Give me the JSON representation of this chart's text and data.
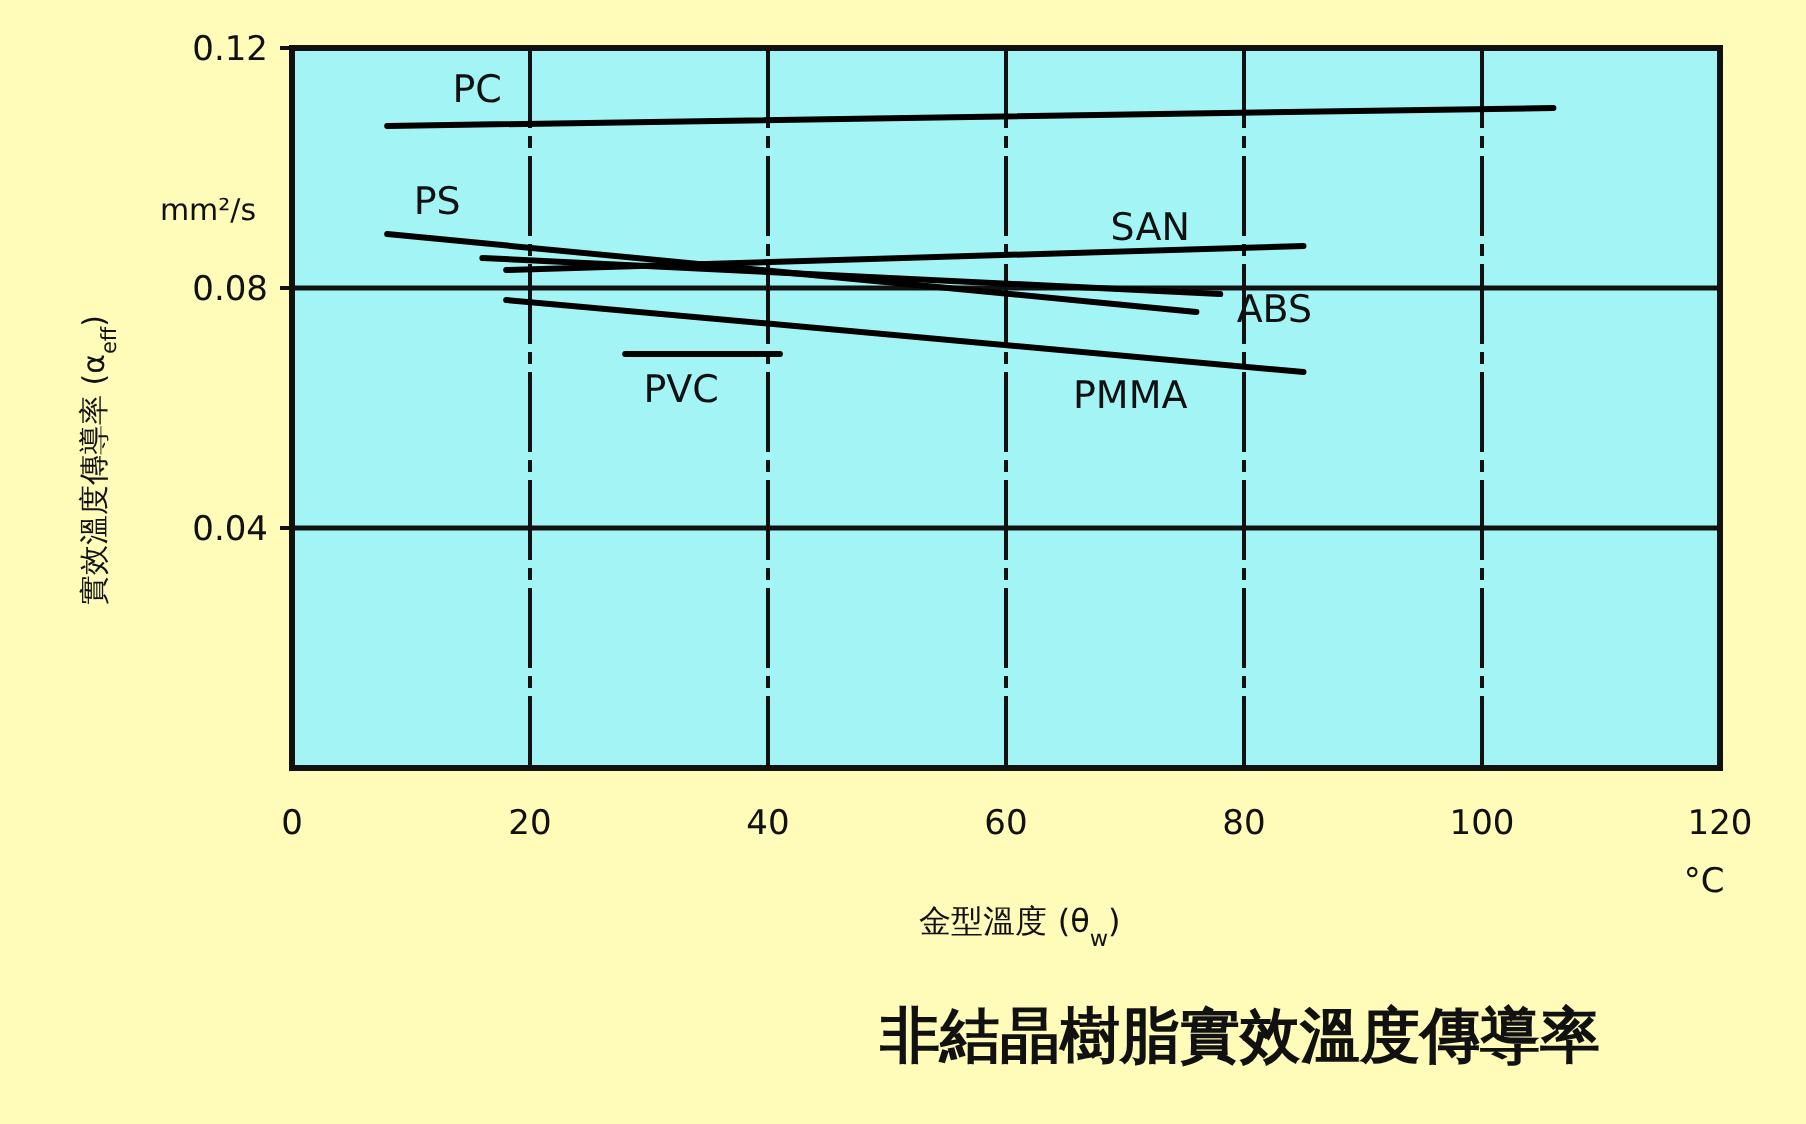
{
  "chart_data": {
    "type": "line",
    "title": "非結晶樹脂實效溫度傳導率",
    "xlabel": "金型溫度 (θ$_{w}$)",
    "ylabel": "實效溫度傳導率 (α$_{eff}$)",
    "annotations": [
      "mm²/s",
      "°C"
    ],
    "xlim": [
      0,
      120
    ],
    "ylim": [
      0,
      0.12
    ],
    "xticks": [
      0,
      20,
      40,
      60,
      80,
      100,
      120
    ],
    "yticks": [
      0.04,
      0.08,
      0.12
    ],
    "grid": true,
    "legend": false,
    "marker": "none",
    "line_style": "solid",
    "series": [
      {
        "name": "PC",
        "color": "#000000",
        "x": [
          8,
          106
        ],
        "values": [
          0.107,
          0.11
        ]
      },
      {
        "name": "PS",
        "color": "#000000",
        "x": [
          8,
          76
        ],
        "values": [
          0.089,
          0.076
        ]
      },
      {
        "name": "ABS",
        "color": "#000000",
        "x": [
          16,
          78
        ],
        "values": [
          0.085,
          0.079
        ]
      },
      {
        "name": "SAN",
        "color": "#000000",
        "x": [
          18,
          85
        ],
        "values": [
          0.083,
          0.087
        ]
      },
      {
        "name": "PVC",
        "color": "#000000",
        "x": [
          28,
          41
        ],
        "values": [
          0.069,
          0.069
        ]
      },
      {
        "name": "PMMA",
        "color": "#000000",
        "x": [
          18,
          85
        ],
        "values": [
          0.078,
          0.066
        ]
      }
    ]
  }
}
